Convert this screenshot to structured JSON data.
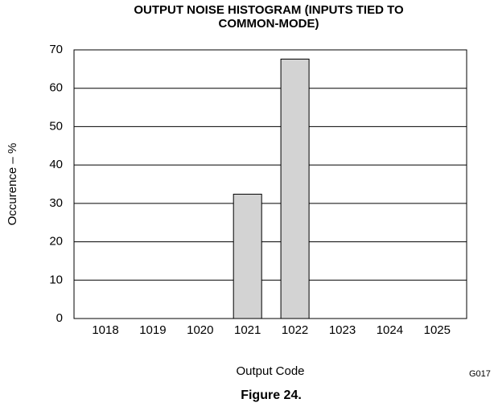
{
  "chart_data": {
    "type": "bar",
    "title": [
      "OUTPUT NOISE HISTOGRAM (INPUTS TIED TO",
      "COMMON-MODE)"
    ],
    "categories": [
      "1018",
      "1019",
      "1020",
      "1021",
      "1022",
      "1023",
      "1024",
      "1025"
    ],
    "values": [
      0,
      0,
      0,
      32.4,
      67.6,
      0,
      0,
      0
    ],
    "color": "#d3d3d3",
    "ylim": [
      0,
      70
    ],
    "yticks": [
      0,
      10,
      20,
      30,
      40,
      50,
      60,
      70
    ],
    "grid": true,
    "xlabel": "Output Code",
    "ylabel": "Occurence – %",
    "code": "G017",
    "caption": "Figure 24."
  }
}
